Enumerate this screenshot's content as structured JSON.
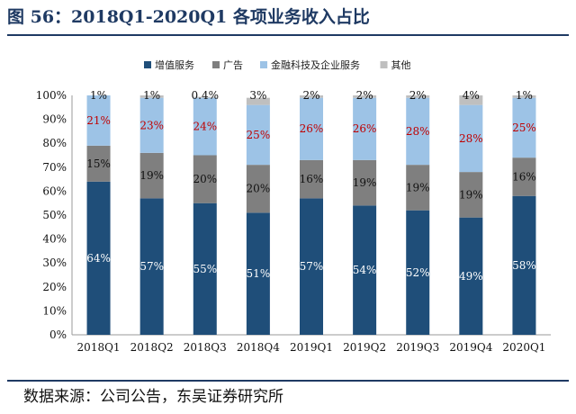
{
  "header": {
    "title": "图 56：2018Q1-2020Q1 各项业务收入占比"
  },
  "footer": {
    "source": "数据来源：公司公告，东吴证券研究所"
  },
  "chart_data": {
    "type": "bar",
    "stacked": true,
    "title": "",
    "xlabel": "",
    "ylabel": "",
    "ylim": [
      0,
      100
    ],
    "y_ticks": [
      "0%",
      "10%",
      "20%",
      "30%",
      "40%",
      "50%",
      "60%",
      "70%",
      "80%",
      "90%",
      "100%"
    ],
    "categories": [
      "2018Q1",
      "2018Q2",
      "2018Q3",
      "2018Q4",
      "2019Q1",
      "2019Q2",
      "2019Q3",
      "2019Q4",
      "2020Q1"
    ],
    "series": [
      {
        "name": "增值服务",
        "color": "#1f4e79",
        "label_color": "#ffffff",
        "values": [
          64,
          57,
          55,
          51,
          57,
          54,
          52,
          49,
          58
        ],
        "labels": [
          "64%",
          "57%",
          "55%",
          "51%",
          "57%",
          "54%",
          "52%",
          "49%",
          "58%"
        ]
      },
      {
        "name": "广告",
        "color": "#7f7f7f",
        "label_color": "#111111",
        "values": [
          15,
          19,
          20,
          20,
          16,
          19,
          19,
          19,
          16
        ],
        "labels": [
          "15%",
          "19%",
          "20%",
          "20%",
          "16%",
          "19%",
          "19%",
          "19%",
          "16%"
        ]
      },
      {
        "name": "金融科技及企业服务",
        "color": "#9dc3e6",
        "label_color": "#c00000",
        "values": [
          21,
          23,
          24,
          25,
          26,
          26,
          28,
          28,
          25
        ],
        "labels": [
          "21%",
          "23%",
          "24%",
          "25%",
          "26%",
          "26%",
          "28%",
          "28%",
          "25%"
        ]
      },
      {
        "name": "其他",
        "color": "#bfbfbf",
        "label_color": "#111111",
        "values": [
          1,
          1,
          0.4,
          3,
          2,
          2,
          2,
          4,
          1
        ],
        "labels": [
          "1%",
          "1%",
          "0.4%",
          "3%",
          "2%",
          "2%",
          "2%",
          "4%",
          "1%"
        ]
      }
    ],
    "legend": {
      "position": "top"
    },
    "grid": false
  }
}
